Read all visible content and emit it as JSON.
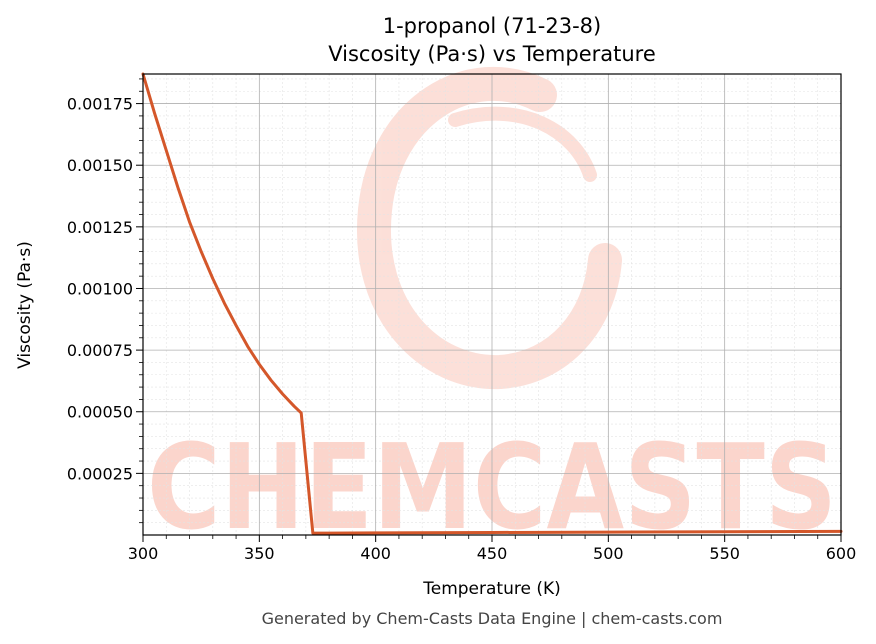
{
  "chart_data": {
    "type": "line",
    "title": "1-propanol (71-23-8)",
    "subtitle": "Viscosity (Pa·s) vs Temperature",
    "xlabel": "Temperature (K)",
    "ylabel": "Viscosity (Pa·s)",
    "xlim": [
      300,
      600
    ],
    "ylim": [
      0,
      0.00187
    ],
    "x_ticks": [
      {
        "value": 300,
        "label": "300"
      },
      {
        "value": 350,
        "label": "350"
      },
      {
        "value": 400,
        "label": "400"
      },
      {
        "value": 450,
        "label": "450"
      },
      {
        "value": 500,
        "label": "500"
      },
      {
        "value": 550,
        "label": "550"
      },
      {
        "value": 600,
        "label": "600"
      }
    ],
    "y_ticks": [
      {
        "value": 0.00025,
        "label": "0.00025"
      },
      {
        "value": 0.0005,
        "label": "0.00050"
      },
      {
        "value": 0.00075,
        "label": "0.00075"
      },
      {
        "value": 0.001,
        "label": "0.00100"
      },
      {
        "value": 0.00125,
        "label": "0.00125"
      },
      {
        "value": 0.0015,
        "label": "0.00150"
      },
      {
        "value": 0.00175,
        "label": "0.00175"
      }
    ],
    "grid": true,
    "minor_grid": true,
    "series": [
      {
        "color": "#d4572a",
        "x": [
          300,
          305,
          310,
          315,
          320,
          325,
          330,
          335,
          340,
          345,
          350,
          355,
          360,
          365,
          368,
          373,
          380,
          400,
          450,
          500,
          550,
          600
        ],
        "y": [
          0.00187,
          0.00171,
          0.00156,
          0.00141,
          0.00127,
          0.00115,
          0.00104,
          0.00094,
          0.00085,
          0.000765,
          0.000692,
          0.000628,
          0.000572,
          0.000522,
          0.000495,
          7.5e-06,
          7.8e-06,
          8.5e-06,
          1.02e-05,
          1.17e-05,
          1.31e-05,
          1.45e-05
        ]
      }
    ]
  },
  "watermark": {
    "text": "CHEMCASTS",
    "color": "#fbd5cc"
  },
  "footer": "Generated by Chem-Casts Data Engine | chem-casts.com"
}
